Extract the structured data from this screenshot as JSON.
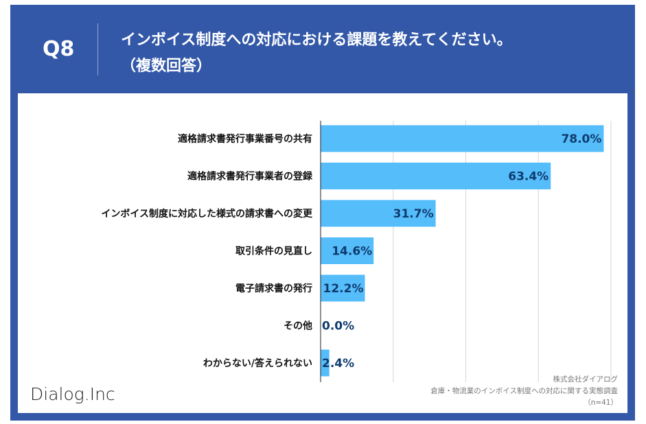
{
  "header": {
    "question_number": "Q8",
    "title_line1": "インボイス制度への対応における課題を教えてください。",
    "title_line2": "（複数回答）"
  },
  "colors": {
    "frame": "#3358a8",
    "bar": "#56bdfb",
    "value_text": "#0e3b6e"
  },
  "chart_data": {
    "type": "bar",
    "orientation": "horizontal",
    "categories": [
      "適格請求書発行事業番号の共有",
      "適格請求書発行事業者の登録",
      "インボイス制度に対応した様式の請求書への変更",
      "取引条件の見直し",
      "電子請求書の発行",
      "その他",
      "わからない/答えられない"
    ],
    "values": [
      78.0,
      63.4,
      31.7,
      14.6,
      12.2,
      0.0,
      2.4
    ],
    "value_labels": [
      "78.0%",
      "63.4%",
      "31.7%",
      "14.6%",
      "12.2%",
      "0.0%",
      "2.4%"
    ],
    "xlim": [
      0,
      80
    ],
    "gridlines": [
      20,
      40,
      60,
      80
    ],
    "grid": true,
    "legend": "none"
  },
  "footer": {
    "logo": "Dialog.Inc",
    "source_company": "株式会社ダイアログ",
    "source_survey": "倉庫・物流業のインボイス制度への対応に関する実態調査",
    "sample": "（n=41）"
  }
}
